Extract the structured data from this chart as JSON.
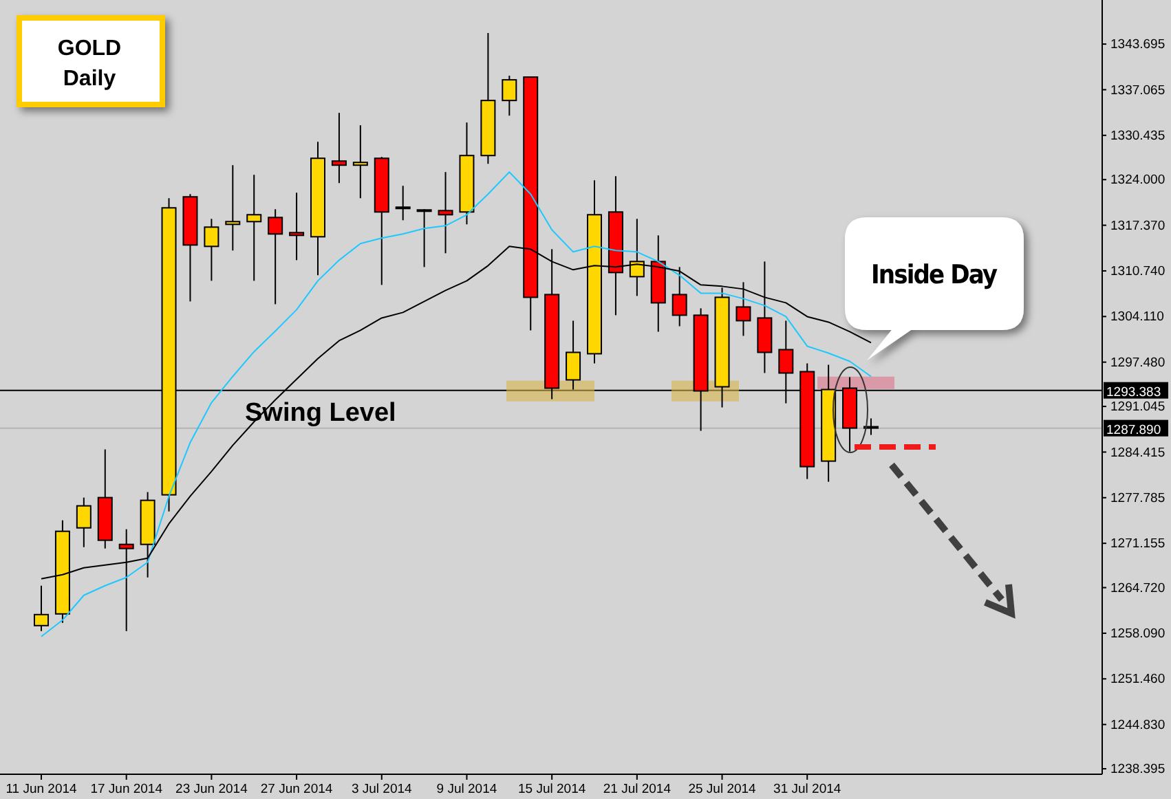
{
  "chart_data": {
    "type": "candlestick",
    "title": "GOLD",
    "subtitle": "Daily",
    "categories": [
      "11 Jun 2014",
      null,
      null,
      null,
      "17 Jun 2014",
      null,
      null,
      null,
      "23 Jun 2014",
      null,
      null,
      null,
      "27 Jun 2014",
      null,
      null,
      null,
      "3 Jul 2014",
      null,
      null,
      null,
      "9 Jul 2014",
      null,
      null,
      null,
      "15 Jul 2014",
      null,
      null,
      null,
      "21 Jul 2014",
      null,
      null,
      null,
      "25 Jul 2014",
      null,
      null,
      null,
      "31 Jul 2014",
      null,
      null,
      null
    ],
    "ohlc": [
      [
        1259.2,
        1265.0,
        1258.4,
        1260.8
      ],
      [
        1260.9,
        1274.5,
        1259.6,
        1272.9
      ],
      [
        1273.4,
        1277.8,
        1270.6,
        1276.6
      ],
      [
        1277.8,
        1284.8,
        1270.4,
        1271.6
      ],
      [
        1271.0,
        1273.2,
        1258.4,
        1270.4
      ],
      [
        1271.0,
        1278.6,
        1266.2,
        1277.4
      ],
      [
        1278.2,
        1321.3,
        1275.8,
        1319.9
      ],
      [
        1321.5,
        1321.9,
        1306.3,
        1314.5
      ],
      [
        1314.3,
        1318.3,
        1309.3,
        1317.1
      ],
      [
        1317.5,
        1326.1,
        1313.7,
        1317.9
      ],
      [
        1317.9,
        1324.7,
        1309.3,
        1318.9
      ],
      [
        1318.5,
        1319.7,
        1305.9,
        1316.1
      ],
      [
        1316.3,
        1322.1,
        1312.3,
        1315.9
      ],
      [
        1315.7,
        1329.5,
        1310.1,
        1327.1
      ],
      [
        1326.7,
        1333.7,
        1323.5,
        1326.1
      ],
      [
        1326.1,
        1331.9,
        1321.3,
        1326.5
      ],
      [
        1327.1,
        1327.3,
        1308.7,
        1319.3
      ],
      [
        1319.8,
        1323.1,
        1318.1,
        1320.0
      ],
      [
        1319.6,
        1319.7,
        1311.3,
        1319.4
      ],
      [
        1319.5,
        1325.1,
        1313.3,
        1318.9
      ],
      [
        1319.3,
        1332.3,
        1317.5,
        1327.5
      ],
      [
        1327.5,
        1345.3,
        1326.3,
        1335.5
      ],
      [
        1335.5,
        1339.1,
        1333.3,
        1338.5
      ],
      [
        1338.9,
        1338.9,
        1302.1,
        1306.9
      ],
      [
        1307.3,
        1313.9,
        1292.1,
        1293.7
      ],
      [
        1294.9,
        1303.5,
        1293.5,
        1298.9
      ],
      [
        1298.7,
        1323.9,
        1297.3,
        1318.9
      ],
      [
        1319.3,
        1324.5,
        1304.3,
        1310.5
      ],
      [
        1309.9,
        1318.3,
        1307.1,
        1312.1
      ],
      [
        1312.1,
        1315.9,
        1301.9,
        1306.1
      ],
      [
        1307.3,
        1311.3,
        1302.7,
        1304.3
      ],
      [
        1304.3,
        1305.3,
        1287.5,
        1293.3
      ],
      [
        1293.9,
        1308.3,
        1290.9,
        1306.9
      ],
      [
        1305.5,
        1309.1,
        1301.3,
        1303.5
      ],
      [
        1303.9,
        1312.1,
        1295.9,
        1298.9
      ],
      [
        1299.3,
        1303.5,
        1291.5,
        1295.9
      ],
      [
        1296.1,
        1297.3,
        1280.5,
        1282.3
      ],
      [
        1283.1,
        1297.1,
        1280.1,
        1293.5
      ],
      [
        1293.7,
        1295.3,
        1284.5,
        1287.9
      ],
      [
        1288.1,
        1289.3,
        1286.9,
        1287.9
      ]
    ],
    "colors": [
      "#ffd700",
      "#ffd700",
      "#ffd700",
      "#ff0000",
      "#ff0000",
      "#ffd700",
      "#ffd700",
      "#ff0000",
      "#ffd700",
      "#ffd700",
      "#ffd700",
      "#ff0000",
      "#ff0000",
      "#ffd700",
      "#ff0000",
      "#ffd700",
      "#ff0000",
      "#ffd700",
      "#ff0000",
      "#ff0000",
      "#ffd700",
      "#ffd700",
      "#ffd700",
      "#ff0000",
      "#ff0000",
      "#ffd700",
      "#ffd700",
      "#ff0000",
      "#ffd700",
      "#ff0000",
      "#ff0000",
      "#ff0000",
      "#ffd700",
      "#ff0000",
      "#ff0000",
      "#ff0000",
      "#ff0000",
      "#ffd700",
      "#ff0000",
      "#ff0000"
    ],
    "series": [
      {
        "type": "line",
        "color": "#1ec8ff",
        "values": [
          1257.6,
          1260.0,
          1263.6,
          1265.0,
          1266.2,
          1268.4,
          1278.0,
          1285.8,
          1291.6,
          1295.4,
          1299.0,
          1302.0,
          1305.1,
          1309.3,
          1312.3,
          1314.7,
          1315.5,
          1316.1,
          1316.9,
          1317.3,
          1318.9,
          1321.9,
          1325.1,
          1321.9,
          1316.7,
          1313.5,
          1314.3,
          1313.7,
          1313.5,
          1312.1,
          1310.1,
          1307.5,
          1307.5,
          1306.7,
          1305.7,
          1304.1,
          1299.8,
          1298.8,
          1297.6,
          1295.4
        ]
      },
      {
        "type": "line",
        "color": "#000000",
        "values": [
          1266.0,
          1266.6,
          1267.6,
          1268.0,
          1268.4,
          1269.0,
          1274.0,
          1278.0,
          1281.6,
          1285.4,
          1288.8,
          1292.0,
          1295.0,
          1298.0,
          1300.6,
          1302.1,
          1303.9,
          1304.7,
          1306.3,
          1307.9,
          1309.3,
          1311.5,
          1314.3,
          1313.9,
          1312.1,
          1310.9,
          1311.5,
          1311.3,
          1311.7,
          1311.3,
          1310.7,
          1308.7,
          1308.5,
          1308.1,
          1306.9,
          1306.1,
          1304.1,
          1303.3,
          1301.9,
          1300.3
        ]
      }
    ],
    "ylim": [
      1237.6,
      1350.1
    ],
    "yticks": [
      {
        "value": 1343.695,
        "label": "1343.695"
      },
      {
        "value": 1337.065,
        "label": "1337.065"
      },
      {
        "value": 1330.435,
        "label": "1330.435"
      },
      {
        "value": 1324.0,
        "label": "1324.000"
      },
      {
        "value": 1317.37,
        "label": "1317.370"
      },
      {
        "value": 1310.74,
        "label": "1310.740"
      },
      {
        "value": 1304.11,
        "label": "1304.110"
      },
      {
        "value": 1297.48,
        "label": "1297.480"
      },
      {
        "value": 1291.045,
        "label": "1291.045"
      },
      {
        "value": 1284.415,
        "label": "1284.415"
      },
      {
        "value": 1277.785,
        "label": "1277.785"
      },
      {
        "value": 1271.155,
        "label": "1271.155"
      },
      {
        "value": 1264.72,
        "label": "1264.720"
      },
      {
        "value": 1258.09,
        "label": "1258.090"
      },
      {
        "value": 1251.46,
        "label": "1251.460"
      },
      {
        "value": 1244.83,
        "label": "1244.830"
      },
      {
        "value": 1238.395,
        "label": "1238.395"
      }
    ],
    "ref_lines": [
      {
        "axis": "y",
        "value": 1293.383,
        "label": "1293.383",
        "color": "#000000"
      },
      {
        "axis": "y",
        "value": 1287.89,
        "label": "1287.890",
        "color": "#b4b4b4"
      }
    ],
    "annotations": [
      "Swing Level",
      "Inside Day"
    ]
  }
}
